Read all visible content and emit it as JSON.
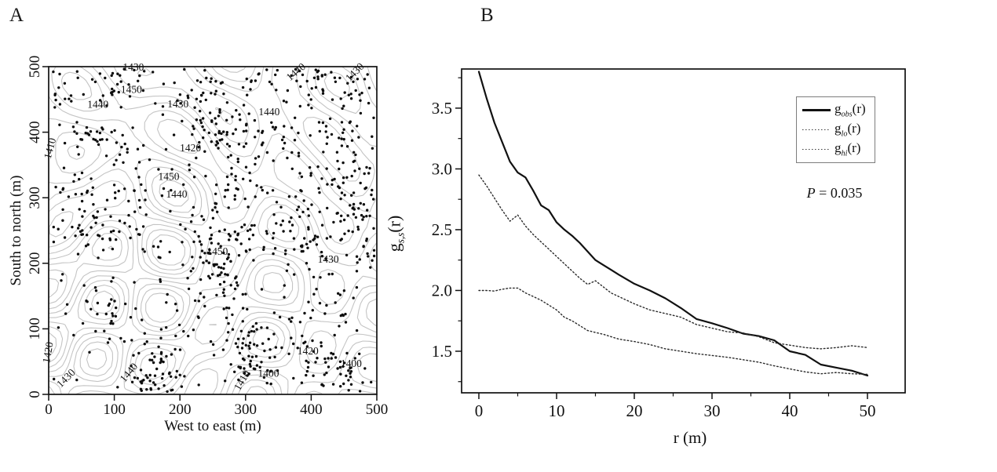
{
  "colors": {
    "line_black": "#111111",
    "contour_gray": "#c4c4c4",
    "contour_label_gray": "#b9b9b9",
    "point_black": "#0d0d0d"
  },
  "chart_data": [
    {
      "type": "scatter",
      "panel_label": "A",
      "xlabel": "West to east (m)",
      "ylabel": "South to north (m)",
      "xlim": [
        0,
        500
      ],
      "ylim": [
        0,
        500
      ],
      "x_ticks": [
        0,
        100,
        200,
        300,
        400,
        500
      ],
      "y_ticks": [
        0,
        100,
        200,
        300,
        400,
        500
      ],
      "grid": false,
      "description": "Clustered point pattern of tree stems (black dots) over light-gray elevation contour lines",
      "points": {
        "color": "#0d0d0d",
        "radius": 1.7,
        "seed": 20,
        "clusters": 64,
        "children_min": 8,
        "children_spread": 17,
        "cluster_sigma": 17,
        "uniform_extra": 175
      },
      "contours": {
        "color": "#c4c4c4",
        "levels": [
          1390,
          1400,
          1410,
          1420,
          1430,
          1440,
          1450,
          1460
        ],
        "seed": 11
      },
      "contour_labels": [
        {
          "text": "1430",
          "x": 129,
          "y": 494,
          "rot": 0
        },
        {
          "text": "1450",
          "x": 126,
          "y": 460,
          "rot": 0
        },
        {
          "text": "1440",
          "x": 75,
          "y": 437,
          "rot": 0
        },
        {
          "text": "1430",
          "x": 197,
          "y": 438,
          "rot": 0
        },
        {
          "text": "1440",
          "x": 380,
          "y": 488,
          "rot": -40
        },
        {
          "text": "1430",
          "x": 470,
          "y": 488,
          "rot": -45
        },
        {
          "text": "1440",
          "x": 336,
          "y": 426,
          "rot": 0
        },
        {
          "text": "1420",
          "x": 216,
          "y": 371,
          "rot": 0
        },
        {
          "text": "1410",
          "x": 7,
          "y": 374,
          "rot": -75
        },
        {
          "text": "1450",
          "x": 183,
          "y": 327,
          "rot": 0
        },
        {
          "text": "1440",
          "x": 195,
          "y": 300,
          "rot": 0
        },
        {
          "text": "1450",
          "x": 257,
          "y": 213,
          "rot": 0
        },
        {
          "text": "1430",
          "x": 426,
          "y": 201,
          "rot": 0
        },
        {
          "text": "1420",
          "x": 4,
          "y": 63,
          "rot": -80
        },
        {
          "text": "1430",
          "x": 30,
          "y": 21,
          "rot": -45
        },
        {
          "text": "1440",
          "x": 126,
          "y": 30,
          "rot": -50
        },
        {
          "text": "1420",
          "x": 395,
          "y": 61,
          "rot": 0
        },
        {
          "text": "1400",
          "x": 461,
          "y": 42,
          "rot": 0
        },
        {
          "text": "1400",
          "x": 335,
          "y": 27,
          "rot": 0
        },
        {
          "text": "1410",
          "x": 299,
          "y": 19,
          "rot": -60
        }
      ]
    },
    {
      "type": "line",
      "panel_label": "B",
      "xlabel": "r (m)",
      "ylabel": "g s,s (r)",
      "ylabel_parts": {
        "base": "g",
        "sub": "s,s",
        "suffix": "(r)"
      },
      "xlim": [
        -2.22,
        54.85
      ],
      "ylim": [
        1.158,
        3.822
      ],
      "x_ticks": [
        0,
        10,
        20,
        30,
        40,
        50
      ],
      "x_minor_step": 5,
      "y_ticks": [
        1.5,
        2.0,
        2.5,
        3.0,
        3.5
      ],
      "y_minor_step": 0.25,
      "grid": false,
      "legend_position": "top-right",
      "annotation": {
        "label": "P",
        "value": " = 0.035"
      },
      "x": [
        0,
        1,
        2,
        3,
        4,
        5,
        6,
        7,
        8,
        9,
        10,
        11,
        12,
        13,
        14,
        15,
        16,
        17,
        18,
        20,
        22,
        24,
        26,
        28,
        30,
        32,
        34,
        36,
        38,
        40,
        42,
        44,
        46,
        48,
        50
      ],
      "series": [
        {
          "name": "g_obs(r)",
          "label_parts": {
            "base": "g",
            "sub": "obs",
            "suffix": "(r)"
          },
          "style": "solid",
          "color": "#111111",
          "values": [
            3.8,
            3.58,
            3.38,
            3.22,
            3.06,
            2.97,
            2.93,
            2.82,
            2.7,
            2.66,
            2.56,
            2.5,
            2.45,
            2.39,
            2.32,
            2.25,
            2.21,
            2.17,
            2.13,
            2.055,
            2.0,
            1.935,
            1.855,
            1.765,
            1.73,
            1.69,
            1.645,
            1.625,
            1.59,
            1.5,
            1.47,
            1.39,
            1.365,
            1.34,
            1.3
          ]
        },
        {
          "name": "g_lo(r)",
          "label_parts": {
            "base": "g",
            "sub": "lo",
            "suffix": "(r)"
          },
          "style": "dotted",
          "color": "#2a2a2a",
          "values": [
            2.0,
            2.0,
            1.995,
            2.01,
            2.02,
            2.02,
            1.98,
            1.95,
            1.92,
            1.88,
            1.84,
            1.78,
            1.75,
            1.71,
            1.67,
            1.655,
            1.64,
            1.62,
            1.6,
            1.58,
            1.555,
            1.52,
            1.5,
            1.48,
            1.465,
            1.45,
            1.43,
            1.41,
            1.38,
            1.355,
            1.33,
            1.315,
            1.325,
            1.315,
            1.31
          ]
        },
        {
          "name": "g_hi(r)",
          "label_parts": {
            "base": "g",
            "sub": "hi",
            "suffix": "(r)"
          },
          "style": "dotted",
          "color": "#2a2a2a",
          "values": [
            2.95,
            2.86,
            2.76,
            2.66,
            2.57,
            2.62,
            2.53,
            2.46,
            2.4,
            2.34,
            2.28,
            2.22,
            2.16,
            2.1,
            2.05,
            2.08,
            2.03,
            1.98,
            1.95,
            1.89,
            1.84,
            1.81,
            1.78,
            1.72,
            1.69,
            1.66,
            1.65,
            1.62,
            1.57,
            1.55,
            1.53,
            1.52,
            1.53,
            1.545,
            1.53
          ]
        }
      ]
    }
  ]
}
